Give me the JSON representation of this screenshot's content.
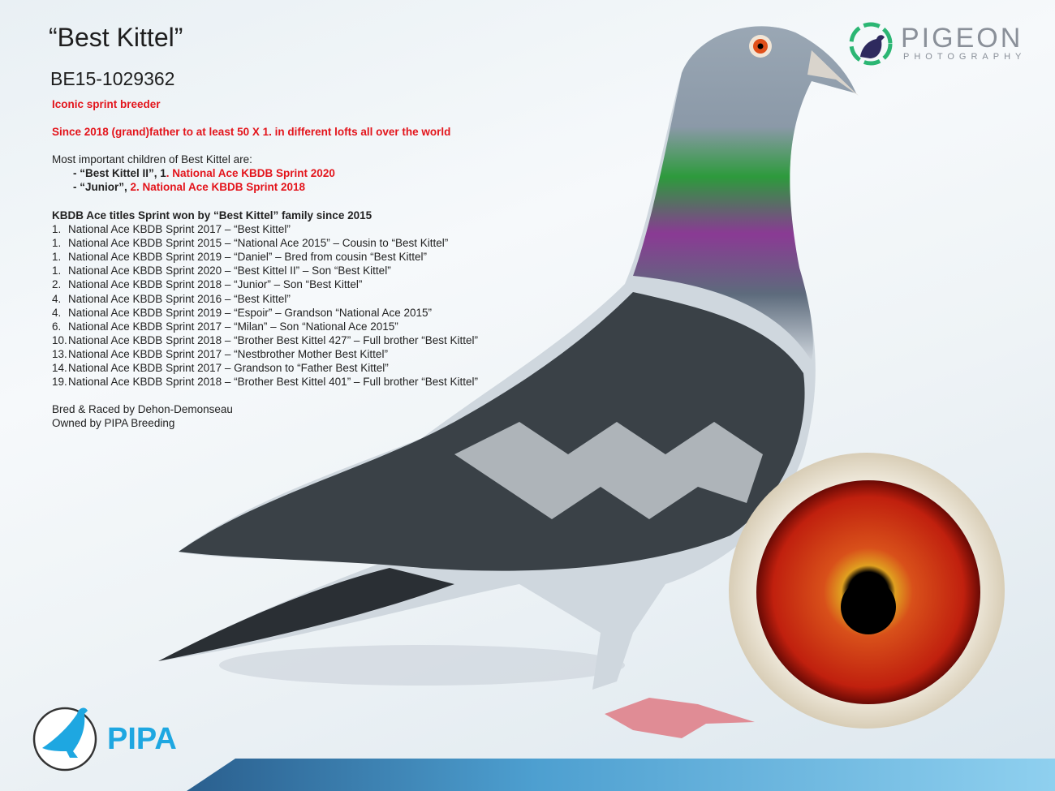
{
  "title": "“Best Kittel”",
  "ring_number": "BE15-1029362",
  "tagline_1": "Iconic sprint breeder",
  "tagline_2": "Since 2018 (grand)father to at least 50 X 1. in different lofts all over the world",
  "children": {
    "heading": "Most important children of Best Kittel are:",
    "items": [
      {
        "name": "- “Best Kittel II”, 1",
        "title": ". National Ace KBDB Sprint 2020"
      },
      {
        "name": "- “Junior”, ",
        "title": "2. National Ace KBDB Sprint 2018"
      }
    ]
  },
  "ace_titles": {
    "heading": "KBDB Ace titles Sprint won by “Best Kittel” family since 2015",
    "items": [
      {
        "rank": "1.",
        "text": "National Ace KBDB Sprint 2017 – “Best Kittel”"
      },
      {
        "rank": "1.",
        "text": "National Ace KBDB Sprint 2015 – “National Ace 2015” – Cousin to “Best Kittel”"
      },
      {
        "rank": "1.",
        "text": "National Ace KBDB Sprint 2019 – “Daniel” – Bred from cousin “Best Kittel”"
      },
      {
        "rank": "1.",
        "text": "National Ace KBDB Sprint 2020 – “Best Kittel II” – Son “Best Kittel”"
      },
      {
        "rank": "2.",
        "text": "National Ace KBDB Sprint 2018 – “Junior” – Son “Best Kittel”"
      },
      {
        "rank": "4.",
        "text": "National Ace KBDB Sprint 2016 – “Best Kittel”"
      },
      {
        "rank": "4.",
        "text": "National Ace KBDB Sprint 2019 – “Espoir” – Grandson “National Ace 2015”"
      },
      {
        "rank": "6.",
        "text": "National Ace KBDB Sprint 2017 – “Milan” – Son “National Ace 2015”"
      },
      {
        "rank": "10.",
        "text": "National Ace KBDB Sprint 2018 – “Brother Best Kittel 427” – Full brother “Best Kittel”"
      },
      {
        "rank": "13.",
        "text": "National Ace KBDB Sprint 2017 – “Nestbrother Mother Best Kittel”"
      },
      {
        "rank": "14.",
        "text": "National Ace KBDB Sprint 2017 – Grandson to “Father Best Kittel”"
      },
      {
        "rank": "19.",
        "text": "National Ace KBDB Sprint 2018 – “Brother Best Kittel 401” – Full brother “Best Kittel”"
      }
    ]
  },
  "bred_by": "Bred & Raced by Dehon-Demonseau",
  "owned_by": "Owned by PIPA Breeding",
  "logos": {
    "pigeon_photography": {
      "word": "PIGEON",
      "sub": "PHOTOGRAPHY"
    },
    "pipa": "PIPA"
  },
  "colors": {
    "accent_red": "#e3141b",
    "pipa_blue": "#1ea7e1",
    "logo_green": "#2bb673",
    "logo_navy": "#2e2a5e"
  }
}
